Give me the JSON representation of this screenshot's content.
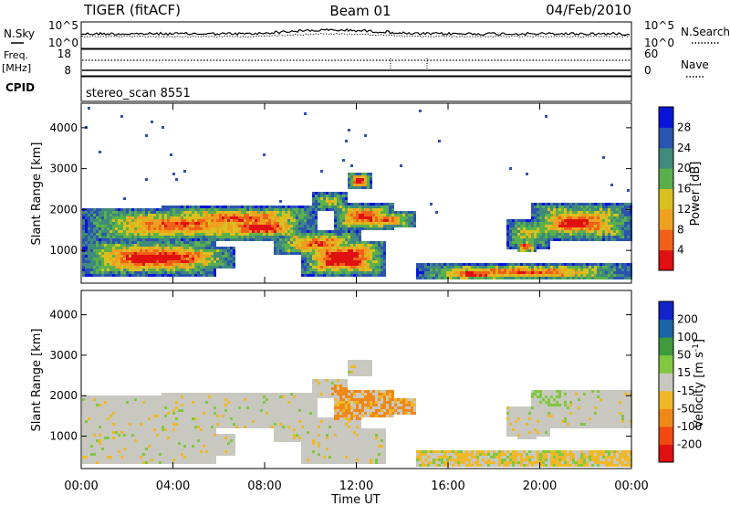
{
  "header": {
    "radar": "TIGER (fitACF)",
    "beam": "Beam 01",
    "date": "04/Feb/2010"
  },
  "top_panel": {
    "left_label": "N.Sky",
    "left_ticks": [
      "10^5",
      "10^0"
    ],
    "right_ticks": [
      "10^5",
      "10^0"
    ],
    "right_label": "N.Search"
  },
  "freq_panel": {
    "label_line1": "Freq.",
    "label_line2": "[MHz]",
    "left_ticks": [
      "18",
      "8"
    ],
    "right_ticks": [
      "60",
      "0"
    ],
    "right_label": "Nave"
  },
  "cpid": {
    "label": "CPID",
    "value": "stereo_scan 8551"
  },
  "chart_data": [
    {
      "type": "heatmap",
      "title": "",
      "xlabel": "",
      "ylabel": "Slant Range [km]",
      "x_ticks": [
        "00:00",
        "04:00",
        "08:00",
        "12:00",
        "16:00",
        "20:00",
        "00:00"
      ],
      "y_ticks": [
        1000,
        2000,
        3000,
        4000
      ],
      "ylim": [
        200,
        4600
      ],
      "colorbar": {
        "label": "Power [dB]",
        "ticks": [
          4,
          8,
          12,
          16,
          20,
          24,
          28
        ],
        "colors": [
          "#0a14d8",
          "#2a54b0",
          "#3f8a7a",
          "#5ab04a",
          "#d8c020",
          "#f0a020",
          "#f06018",
          "#e01010"
        ]
      }
    },
    {
      "type": "heatmap",
      "title": "",
      "xlabel": "Time UT",
      "ylabel": "Slant Range [km]",
      "x_ticks": [
        "00:00",
        "04:00",
        "08:00",
        "12:00",
        "16:00",
        "20:00",
        "00:00"
      ],
      "y_ticks": [
        1000,
        2000,
        3000,
        4000
      ],
      "ylim": [
        200,
        4600
      ],
      "colorbar": {
        "label": "Velocity [m s^-1]",
        "ticks": [
          200,
          100,
          50,
          15,
          -15,
          -50,
          -100,
          -200
        ],
        "colors": [
          "#1024c8",
          "#1a64a8",
          "#3e9a3a",
          "#80c840",
          "#c8c8c0",
          "#f0b828",
          "#f08818",
          "#f04a10",
          "#e01010"
        ]
      }
    }
  ]
}
